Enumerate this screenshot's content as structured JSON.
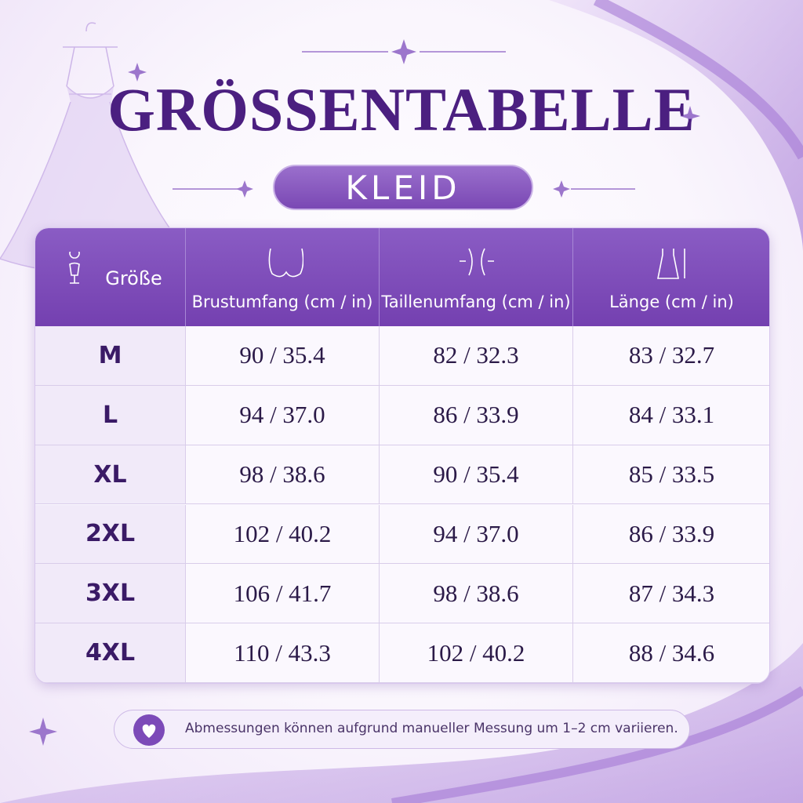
{
  "header": {
    "title": "GRÖSSENTABELLE",
    "subtitle": "KLEID"
  },
  "table": {
    "columns": [
      "Größe",
      "Brustumfang (cm / in)",
      "Taillenumfang (cm / in)",
      "Länge (cm / in)"
    ],
    "rows": [
      [
        "M",
        "90 / 35.4",
        "82 / 32.3",
        "83 / 32.7"
      ],
      [
        "L",
        "94 / 37.0",
        "86 / 33.9",
        "84 / 33.1"
      ],
      [
        "XL",
        "98 / 38.6",
        "90 / 35.4",
        "85 / 33.5"
      ],
      [
        "2XL",
        "102 / 40.2",
        "94 / 37.0",
        "86 / 33.9"
      ],
      [
        "3XL",
        "106 / 41.7",
        "98 / 38.6",
        "87 / 34.3"
      ],
      [
        "4XL",
        "110 / 43.3",
        "102 / 40.2",
        "88 / 34.6"
      ]
    ]
  },
  "footer": {
    "note": "Abmessungen können aufgrund manueller Messung um 1–2 cm variieren."
  }
}
